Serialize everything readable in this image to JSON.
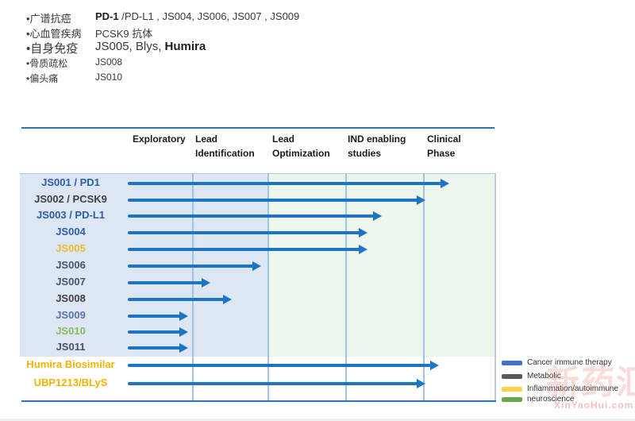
{
  "bullets": [
    {
      "label": "•广谱抗癌",
      "segments": [
        {
          "t": "PD-1 ",
          "b": true
        },
        {
          "t": "/PD-L1 , JS004, JS006, JS007 , JS009",
          "b": false
        }
      ],
      "size": "md"
    },
    {
      "label": "•心血管疾病",
      "segments": [
        {
          "t": "PCSK9 抗体",
          "b": false
        }
      ],
      "size": "md"
    },
    {
      "label": "•自身免疫",
      "segments": [
        {
          "t": "JS005, Blys, ",
          "b": false
        },
        {
          "t": "Humira",
          "b": true
        }
      ],
      "size": "lg"
    },
    {
      "label": "•骨质疏松",
      "segments": [
        {
          "t": "JS008",
          "b": false
        }
      ],
      "size": "sm"
    },
    {
      "label": "•偏头痛",
      "segments": [
        {
          "t": "JS010",
          "b": false
        }
      ],
      "size": "sm"
    }
  ],
  "chart_data": {
    "type": "gantt",
    "title": "",
    "phases": [
      "Exploratory",
      "Lead Identification",
      "Lead Optimization",
      "IND enabling studies",
      "Clinical Phase"
    ],
    "progress_scale": "phase units: 0 = start of Exploratory, 5 = end of Clinical Phase",
    "arrow_color": "#1b74c5",
    "programs": [
      {
        "name": "JS001 / PD1",
        "category": "Cancer immune therapy",
        "label_color": "#2d5ca8",
        "progress": 4.37
      },
      {
        "name": "JS002 / PCSK9",
        "category": "Metabolic",
        "label_color": "#404040",
        "progress": 4.03
      },
      {
        "name": "JS003 / PD-L1",
        "category": "Cancer immune therapy",
        "label_color": "#2d5ca8",
        "progress": 3.47
      },
      {
        "name": "JS004",
        "category": "Cancer immune therapy",
        "label_color": "#2d5ca8",
        "progress": 3.29
      },
      {
        "name": "JS005",
        "category": "Inflammation/autoimmune",
        "label_color": "#eebc33",
        "progress": 3.29
      },
      {
        "name": "JS006",
        "category": "Cancer immune therapy",
        "label_color": "#44546a",
        "progress": 1.92
      },
      {
        "name": "JS007",
        "category": "Cancer immune therapy",
        "label_color": "#44546a",
        "progress": 1.24
      },
      {
        "name": "JS008",
        "category": "Metabolic",
        "label_color": "#404040",
        "progress": 1.53
      },
      {
        "name": "JS009",
        "category": "Cancer immune therapy",
        "label_color": "#5b73a8",
        "progress": 0.94
      },
      {
        "name": "JS010",
        "category": "neuroscience",
        "label_color": "#84bb5c",
        "progress": 0.94
      },
      {
        "name": "JS011",
        "category": "Cancer immune therapy",
        "label_color": "#44546a",
        "progress": 0.94
      },
      {
        "name": "Humira Biosimilar",
        "category": "Inflammation/autoimmune",
        "label_color": "#f5b301",
        "progress": 4.22
      },
      {
        "name": "UBP1213/BLyS",
        "category": "Inflammation/autoimmune",
        "label_color": "#f5b301",
        "progress": 4.03
      }
    ],
    "legend": [
      {
        "label": "Cancer immune therapy",
        "color": "#4472c4"
      },
      {
        "label": "Metabolic",
        "color": "#595959"
      },
      {
        "label": "Inflammation/autoimmune",
        "color": "#ffd24a"
      },
      {
        "label": "neuroscience",
        "color": "#6aa84f"
      }
    ],
    "background_colors": {
      "left_zone": "#dde7f3",
      "right_zone": "#edf6ed"
    }
  },
  "watermark": {
    "cn": "新药汇",
    "en": "XinYaoHui.com"
  }
}
